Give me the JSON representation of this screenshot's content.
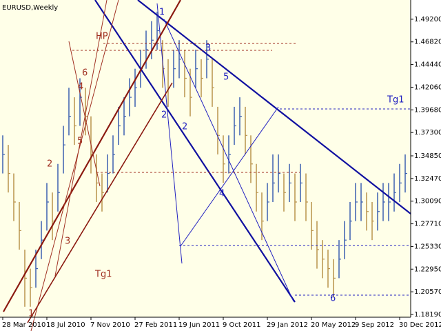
{
  "chart_data": {
    "type": "ohlc",
    "title": "EURUSD,Weekly",
    "categories": [
      "28 Mar 2010",
      null,
      null,
      null,
      null,
      null,
      null,
      null,
      "18 Jul 2010",
      null,
      null,
      null,
      null,
      null,
      null,
      null,
      "7 Nov 2010",
      null,
      null,
      null,
      null,
      null,
      null,
      null,
      "27 Feb 2011",
      null,
      null,
      null,
      null,
      null,
      null,
      null,
      "19 Jun 2011",
      null,
      null,
      null,
      null,
      null,
      null,
      null,
      "9 Oct 2011",
      null,
      null,
      null,
      null,
      null,
      null,
      null,
      "29 Jan 2012",
      null,
      null,
      null,
      null,
      null,
      null,
      null,
      "20 May 2012",
      null,
      null,
      null,
      null,
      null,
      null,
      null,
      "9 Sep 2012",
      null,
      null,
      null,
      null,
      null,
      null,
      null,
      "30 Dec 2012",
      null
    ],
    "high": [
      1.37,
      1.36,
      1.33,
      1.3,
      1.25,
      1.23,
      1.25,
      1.28,
      1.32,
      1.31,
      1.34,
      1.38,
      1.42,
      1.41,
      1.43,
      1.42,
      1.39,
      1.35,
      1.33,
      1.35,
      1.37,
      1.4,
      1.41,
      1.43,
      1.44,
      1.46,
      1.48,
      1.49,
      1.5,
      1.47,
      1.45,
      1.46,
      1.47,
      1.46,
      1.44,
      1.46,
      1.45,
      1.47,
      1.45,
      1.4,
      1.37,
      1.37,
      1.4,
      1.41,
      1.4,
      1.37,
      1.34,
      1.31,
      1.32,
      1.35,
      1.35,
      1.33,
      1.34,
      1.33,
      1.34,
      1.33,
      1.3,
      1.28,
      1.26,
      1.25,
      1.24,
      1.26,
      1.28,
      1.3,
      1.32,
      1.32,
      1.31,
      1.3,
      1.31,
      1.32,
      1.32,
      1.33,
      1.34,
      1.35
    ],
    "low": [
      1.33,
      1.31,
      1.28,
      1.25,
      1.19,
      1.19,
      1.21,
      1.24,
      1.27,
      1.26,
      1.29,
      1.33,
      1.37,
      1.36,
      1.38,
      1.37,
      1.33,
      1.3,
      1.29,
      1.31,
      1.33,
      1.36,
      1.37,
      1.39,
      1.4,
      1.42,
      1.44,
      1.45,
      1.46,
      1.42,
      1.4,
      1.42,
      1.43,
      1.41,
      1.39,
      1.42,
      1.41,
      1.43,
      1.4,
      1.35,
      1.32,
      1.33,
      1.36,
      1.37,
      1.35,
      1.32,
      1.29,
      1.26,
      1.28,
      1.3,
      1.31,
      1.29,
      1.3,
      1.28,
      1.3,
      1.28,
      1.25,
      1.23,
      1.22,
      1.21,
      1.2,
      1.22,
      1.24,
      1.26,
      1.28,
      1.28,
      1.27,
      1.26,
      1.27,
      1.28,
      1.28,
      1.29,
      1.3,
      1.31
    ],
    "close": [
      1.35,
      1.33,
      1.3,
      1.27,
      1.22,
      1.21,
      1.23,
      1.26,
      1.3,
      1.28,
      1.31,
      1.36,
      1.39,
      1.38,
      1.41,
      1.39,
      1.35,
      1.32,
      1.31,
      1.33,
      1.35,
      1.38,
      1.39,
      1.41,
      1.42,
      1.44,
      1.46,
      1.47,
      1.48,
      1.44,
      1.42,
      1.44,
      1.45,
      1.43,
      1.41,
      1.44,
      1.43,
      1.45,
      1.42,
      1.37,
      1.34,
      1.35,
      1.38,
      1.39,
      1.37,
      1.34,
      1.31,
      1.28,
      1.3,
      1.32,
      1.33,
      1.31,
      1.32,
      1.3,
      1.32,
      1.3,
      1.27,
      1.25,
      1.24,
      1.23,
      1.22,
      1.24,
      1.26,
      1.28,
      1.3,
      1.3,
      1.29,
      1.28,
      1.29,
      1.3,
      1.3,
      1.31,
      1.32,
      1.33
    ],
    "up_color": "#3a5fb0",
    "down_color": "#b8924a",
    "background": "#ffffe8",
    "ylim": [
      1.179,
      1.5122
    ],
    "yticks": [
      {
        "value": 1.492,
        "label": "1.49200"
      },
      {
        "value": 1.4682,
        "label": "1.46820"
      },
      {
        "value": 1.4444,
        "label": "1.44440"
      },
      {
        "value": 1.4206,
        "label": "1.42060"
      },
      {
        "value": 1.3968,
        "label": "1.39680"
      },
      {
        "value": 1.373,
        "label": "1.37300"
      },
      {
        "value": 1.3485,
        "label": "1.34850"
      },
      {
        "value": 1.3247,
        "label": "1.32470"
      },
      {
        "value": 1.3009,
        "label": "1.30090"
      },
      {
        "value": 1.2771,
        "label": "1.27710"
      },
      {
        "value": 1.2533,
        "label": "1.25330"
      },
      {
        "value": 1.2295,
        "label": "1.22950"
      },
      {
        "value": 1.2057,
        "label": "1.20570"
      },
      {
        "value": 1.1819,
        "label": "1.18190"
      }
    ],
    "annotations": [
      "1",
      "2",
      "2",
      "3",
      "4",
      "5",
      "6",
      "Tg1",
      "HP",
      "6",
      "4",
      "5",
      "2",
      "3",
      "1",
      "Tg1"
    ]
  }
}
